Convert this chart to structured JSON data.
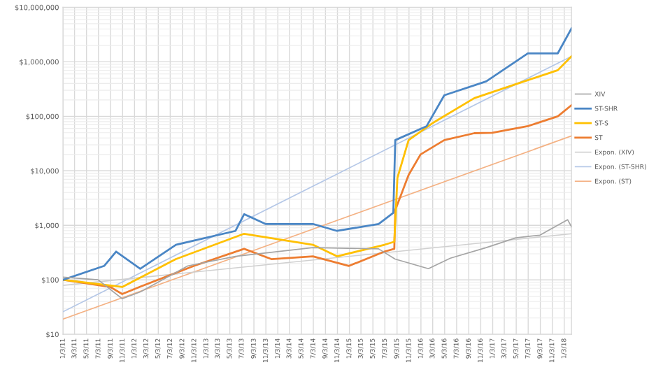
{
  "chart_data": {
    "type": "line",
    "log": "y",
    "grid": true,
    "legend": "right",
    "line_style": "solid",
    "marker": "none",
    "xlim": [
      "2011-01-03",
      "2018-02-09"
    ],
    "ylim": [
      10,
      10000000
    ],
    "yticks": [
      {
        "value": 10,
        "label": "$10"
      },
      {
        "value": 100,
        "label": "$100"
      },
      {
        "value": 1000,
        "label": "$1,000"
      },
      {
        "value": 10000,
        "label": "$10,000"
      },
      {
        "value": 100000,
        "label": "$100,000"
      },
      {
        "value": 1000000,
        "label": "$1,000,000"
      },
      {
        "value": 10000000,
        "label": "$10,000,000"
      }
    ],
    "xticks": [
      {
        "value": "2011-01-03",
        "label": "1/3/11"
      },
      {
        "value": "2011-03-03",
        "label": "3/3/11"
      },
      {
        "value": "2011-05-03",
        "label": "5/3/11"
      },
      {
        "value": "2011-07-03",
        "label": "7/3/11"
      },
      {
        "value": "2011-09-03",
        "label": "9/3/11"
      },
      {
        "value": "2011-11-03",
        "label": "11/3/11"
      },
      {
        "value": "2012-01-03",
        "label": "1/3/12"
      },
      {
        "value": "2012-03-03",
        "label": "3/3/12"
      },
      {
        "value": "2012-05-03",
        "label": "5/3/12"
      },
      {
        "value": "2012-07-03",
        "label": "7/3/12"
      },
      {
        "value": "2012-09-03",
        "label": "9/3/12"
      },
      {
        "value": "2012-11-03",
        "label": "11/3/12"
      },
      {
        "value": "2013-01-03",
        "label": "1/3/13"
      },
      {
        "value": "2013-03-03",
        "label": "3/3/13"
      },
      {
        "value": "2013-05-03",
        "label": "5/3/13"
      },
      {
        "value": "2013-07-03",
        "label": "7/3/13"
      },
      {
        "value": "2013-09-03",
        "label": "9/3/13"
      },
      {
        "value": "2013-11-03",
        "label": "11/3/13"
      },
      {
        "value": "2014-01-03",
        "label": "1/3/14"
      },
      {
        "value": "2014-03-03",
        "label": "3/3/14"
      },
      {
        "value": "2014-05-03",
        "label": "5/3/14"
      },
      {
        "value": "2014-07-03",
        "label": "7/3/14"
      },
      {
        "value": "2014-09-03",
        "label": "9/3/14"
      },
      {
        "value": "2014-11-03",
        "label": "11/3/14"
      },
      {
        "value": "2015-01-03",
        "label": "1/3/15"
      },
      {
        "value": "2015-03-03",
        "label": "3/3/15"
      },
      {
        "value": "2015-05-03",
        "label": "5/3/15"
      },
      {
        "value": "2015-07-03",
        "label": "7/3/15"
      },
      {
        "value": "2015-09-03",
        "label": "9/3/15"
      },
      {
        "value": "2015-11-03",
        "label": "11/3/15"
      },
      {
        "value": "2016-01-03",
        "label": "1/3/16"
      },
      {
        "value": "2016-03-03",
        "label": "3/3/16"
      },
      {
        "value": "2016-05-03",
        "label": "5/3/16"
      },
      {
        "value": "2016-07-03",
        "label": "7/3/16"
      },
      {
        "value": "2016-09-03",
        "label": "9/3/16"
      },
      {
        "value": "2016-11-03",
        "label": "11/3/16"
      },
      {
        "value": "2017-01-03",
        "label": "1/3/17"
      },
      {
        "value": "2017-03-03",
        "label": "3/3/17"
      },
      {
        "value": "2017-05-03",
        "label": "5/3/17"
      },
      {
        "value": "2017-07-03",
        "label": "7/3/17"
      },
      {
        "value": "2017-09-03",
        "label": "9/3/17"
      },
      {
        "value": "2017-11-03",
        "label": "11/3/17"
      },
      {
        "value": "2018-01-03",
        "label": "1/3/18"
      }
    ],
    "series": [
      {
        "name": "XIV",
        "color": "#a5a5a5",
        "x": [
          "2011-01-03",
          "2011-07-01",
          "2011-11-01",
          "2012-02-01",
          "2012-10-01",
          "2013-06-01",
          "2014-07-01",
          "2015-06-01",
          "2015-08-24",
          "2016-02-10",
          "2016-06-01",
          "2016-12-01",
          "2017-05-01",
          "2017-09-01",
          "2018-01-20",
          "2018-02-09"
        ],
        "values": [
          112,
          100,
          45,
          60,
          180,
          270,
          390,
          370,
          240,
          160,
          250,
          390,
          590,
          660,
          1270,
          940
        ]
      },
      {
        "name": "ST-SHR",
        "color": "#4a86c5",
        "x": [
          "2011-01-03",
          "2011-08-01",
          "2011-10-01",
          "2012-02-01",
          "2012-08-01",
          "2013-06-01",
          "2013-07-15",
          "2013-11-01",
          "2014-07-01",
          "2014-11-01",
          "2015-06-01",
          "2015-08-15",
          "2015-08-25",
          "2016-02-01",
          "2016-05-01",
          "2016-12-01",
          "2017-07-01",
          "2017-12-01",
          "2018-02-09"
        ],
        "values": [
          100,
          180,
          330,
          160,
          440,
          790,
          1600,
          1060,
          1060,
          790,
          1060,
          1700,
          36600,
          66000,
          243000,
          438000,
          1430000,
          1430000,
          4100000
        ]
      },
      {
        "name": "ST-S",
        "color": "#ffc000",
        "x": [
          "2011-01-03",
          "2011-11-01",
          "2012-08-01",
          "2013-07-15",
          "2014-07-01",
          "2014-11-01",
          "2015-07-01",
          "2015-08-20",
          "2015-09-05",
          "2015-11-01",
          "2016-03-01",
          "2016-10-01",
          "2017-05-01",
          "2017-12-01",
          "2018-02-09"
        ],
        "values": [
          100,
          74,
          240,
          700,
          440,
          270,
          440,
          500,
          7450,
          36600,
          74500,
          215000,
          389000,
          702000,
          1260000
        ]
      },
      {
        "name": "ST",
        "color": "#ed7d31",
        "x": [
          "2011-01-03",
          "2011-09-01",
          "2011-11-01",
          "2012-02-01",
          "2012-11-01",
          "2013-07-15",
          "2013-12-01",
          "2014-07-01",
          "2015-01-01",
          "2015-07-01",
          "2015-08-20",
          "2015-08-25",
          "2015-11-01",
          "2016-01-01",
          "2016-05-01",
          "2016-10-01",
          "2017-01-01",
          "2017-07-01",
          "2017-12-01",
          "2018-02-09"
        ],
        "values": [
          100,
          74,
          55,
          75,
          180,
          370,
          240,
          270,
          180,
          330,
          370,
          1900,
          8400,
          20000,
          36600,
          49000,
          50000,
          66000,
          100000,
          160000
        ]
      },
      {
        "name": "Expon. (XIV)",
        "color": "#d0d0d0",
        "x": [
          "2011-01-03",
          "2018-02-09"
        ],
        "values": [
          79,
          700
        ]
      },
      {
        "name": "Expon. (ST-SHR)",
        "color": "#b4c7e7",
        "x": [
          "2011-01-03",
          "2018-02-09"
        ],
        "values": [
          26,
          1260000
        ]
      },
      {
        "name": "Expon. (ST)",
        "color": "#f4b183",
        "x": [
          "2011-01-03",
          "2018-02-09"
        ],
        "values": [
          19,
          43700
        ]
      }
    ]
  }
}
